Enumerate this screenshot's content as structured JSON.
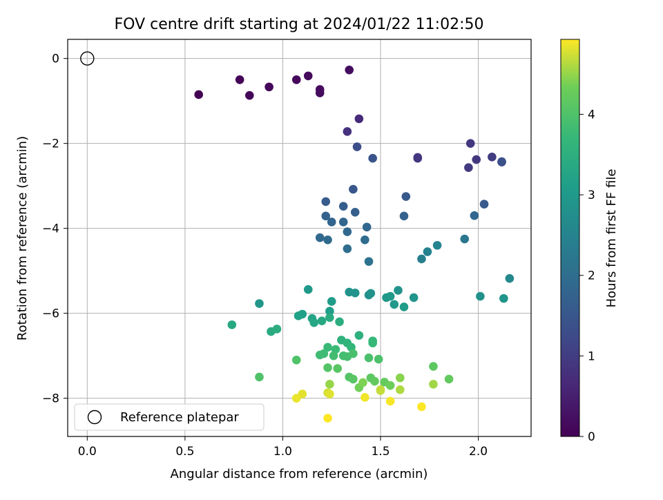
{
  "chart_data": {
    "type": "scatter",
    "title": "FOV centre drift starting at 2024/01/22 11:02:50",
    "xlabel": "Angular distance from reference (arcmin)",
    "ylabel": "Rotation from reference (arcmin)",
    "xlim": [
      -0.1,
      2.27
    ],
    "ylim": [
      -8.9,
      0.45
    ],
    "x_ticks": [
      0.0,
      0.5,
      1.0,
      1.5,
      2.0
    ],
    "x_tick_labels": [
      "0.0",
      "0.5",
      "1.0",
      "1.5",
      "2.0"
    ],
    "y_ticks": [
      0,
      -2,
      -4,
      -6,
      -8
    ],
    "y_tick_labels": [
      "0",
      "−2",
      "−4",
      "−6",
      "−8"
    ],
    "grid": true,
    "colormap": "viridis",
    "colorbar": {
      "label": "Hours from first FF file",
      "range": [
        0,
        4.93
      ],
      "ticks": [
        0,
        1,
        2,
        3,
        4
      ],
      "tick_labels": [
        "0",
        "1",
        "2",
        "3",
        "4"
      ]
    },
    "reference": {
      "name": "Reference platepar",
      "x": 0.0,
      "y": 0.0,
      "marker": "open-circle"
    },
    "legend": {
      "placement": "lower-left",
      "entries": [
        "Reference platepar"
      ]
    },
    "series": [
      {
        "points": [
          [
            0.57,
            -0.85,
            0.0
          ],
          [
            0.78,
            -0.5,
            0.05
          ],
          [
            0.83,
            -0.87,
            0.08
          ],
          [
            0.93,
            -0.67,
            0.1
          ],
          [
            1.07,
            -0.5,
            0.12
          ],
          [
            1.13,
            -0.41,
            0.14
          ],
          [
            1.19,
            -0.73,
            0.16
          ],
          [
            1.19,
            -0.81,
            0.18
          ],
          [
            1.34,
            -0.27,
            0.2
          ],
          [
            1.39,
            -1.42,
            0.7
          ],
          [
            1.33,
            -1.72,
            0.8
          ],
          [
            1.38,
            -2.08,
            1.3
          ],
          [
            1.46,
            -2.35,
            1.45
          ],
          [
            1.69,
            -2.35,
            0.85
          ],
          [
            1.69,
            -2.33,
            0.88
          ],
          [
            1.96,
            -2.0,
            0.9
          ],
          [
            1.99,
            -2.38,
            0.92
          ],
          [
            1.95,
            -2.57,
            0.95
          ],
          [
            2.07,
            -2.32,
            1.0
          ],
          [
            2.12,
            -2.43,
            1.3
          ],
          [
            2.12,
            -2.44,
            1.35
          ],
          [
            1.36,
            -3.08,
            1.5
          ],
          [
            1.63,
            -3.25,
            1.55
          ],
          [
            1.22,
            -3.37,
            1.6
          ],
          [
            1.31,
            -3.48,
            1.65
          ],
          [
            1.37,
            -3.62,
            1.7
          ],
          [
            1.62,
            -3.71,
            1.72
          ],
          [
            1.22,
            -3.71,
            1.75
          ],
          [
            1.25,
            -3.85,
            1.8
          ],
          [
            1.31,
            -3.85,
            1.82
          ],
          [
            1.43,
            -3.97,
            1.85
          ],
          [
            1.33,
            -4.08,
            1.88
          ],
          [
            1.19,
            -4.22,
            1.9
          ],
          [
            1.23,
            -4.27,
            1.95
          ],
          [
            1.42,
            -4.27,
            1.97
          ],
          [
            1.33,
            -4.48,
            2.0
          ],
          [
            1.44,
            -4.78,
            2.1
          ],
          [
            1.98,
            -3.7,
            1.85
          ],
          [
            2.03,
            -3.43,
            1.6
          ],
          [
            1.93,
            -4.25,
            2.2
          ],
          [
            1.71,
            -4.72,
            2.4
          ],
          [
            1.74,
            -4.55,
            2.45
          ],
          [
            1.79,
            -4.4,
            2.5
          ],
          [
            2.16,
            -5.18,
            2.6
          ],
          [
            2.01,
            -5.6,
            2.8
          ],
          [
            2.13,
            -5.65,
            2.9
          ],
          [
            1.59,
            -5.46,
            2.85
          ],
          [
            1.67,
            -5.63,
            2.9
          ],
          [
            1.53,
            -5.63,
            2.95
          ],
          [
            1.55,
            -5.6,
            2.97
          ],
          [
            1.57,
            -5.79,
            3.0
          ],
          [
            1.62,
            -5.85,
            3.05
          ],
          [
            1.44,
            -5.57,
            2.8
          ],
          [
            1.45,
            -5.53,
            2.82
          ],
          [
            1.34,
            -5.5,
            2.85
          ],
          [
            1.37,
            -5.52,
            2.87
          ],
          [
            1.13,
            -5.44,
            3.0
          ],
          [
            0.88,
            -5.77,
            2.95
          ],
          [
            1.25,
            -5.72,
            3.05
          ],
          [
            1.24,
            -5.95,
            3.1
          ],
          [
            1.1,
            -6.02,
            3.15
          ],
          [
            1.08,
            -6.06,
            3.2
          ],
          [
            1.15,
            -6.12,
            3.25
          ],
          [
            1.16,
            -6.22,
            3.3
          ],
          [
            1.2,
            -6.18,
            3.35
          ],
          [
            1.24,
            -6.1,
            3.4
          ],
          [
            1.29,
            -6.2,
            3.45
          ],
          [
            0.74,
            -6.27,
            3.35
          ],
          [
            0.94,
            -6.43,
            3.4
          ],
          [
            0.97,
            -6.37,
            3.45
          ],
          [
            1.39,
            -6.52,
            3.5
          ],
          [
            1.3,
            -6.63,
            3.55
          ],
          [
            1.33,
            -6.7,
            3.6
          ],
          [
            1.35,
            -6.8,
            3.65
          ],
          [
            1.46,
            -6.65,
            3.7
          ],
          [
            1.46,
            -6.7,
            3.72
          ],
          [
            1.23,
            -6.8,
            3.75
          ],
          [
            1.27,
            -6.85,
            3.77
          ],
          [
            1.21,
            -6.95,
            3.8
          ],
          [
            1.19,
            -6.98,
            3.82
          ],
          [
            1.26,
            -7.0,
            3.85
          ],
          [
            1.31,
            -7.0,
            3.87
          ],
          [
            1.33,
            -7.02,
            3.9
          ],
          [
            1.36,
            -6.95,
            3.92
          ],
          [
            1.44,
            -7.05,
            3.95
          ],
          [
            1.49,
            -7.08,
            3.97
          ],
          [
            1.07,
            -7.1,
            4.0
          ],
          [
            1.23,
            -7.28,
            4.05
          ],
          [
            1.28,
            -7.3,
            4.1
          ],
          [
            1.77,
            -7.25,
            4.15
          ],
          [
            0.88,
            -7.5,
            4.0
          ],
          [
            1.34,
            -7.5,
            4.05
          ],
          [
            1.36,
            -7.55,
            4.1
          ],
          [
            1.45,
            -7.52,
            4.15
          ],
          [
            1.47,
            -7.6,
            4.2
          ],
          [
            1.52,
            -7.62,
            4.25
          ],
          [
            1.55,
            -7.7,
            4.3
          ],
          [
            1.39,
            -7.75,
            4.35
          ],
          [
            1.41,
            -7.63,
            4.4
          ],
          [
            1.6,
            -7.52,
            4.45
          ],
          [
            1.24,
            -7.67,
            4.5
          ],
          [
            1.85,
            -7.55,
            4.2
          ],
          [
            1.77,
            -7.67,
            4.55
          ],
          [
            1.6,
            -7.8,
            4.6
          ],
          [
            1.5,
            -7.8,
            4.65
          ],
          [
            1.5,
            -7.82,
            4.7
          ],
          [
            1.23,
            -7.87,
            4.75
          ],
          [
            1.24,
            -7.9,
            4.8
          ],
          [
            1.1,
            -7.9,
            4.82
          ],
          [
            1.07,
            -8.0,
            4.85
          ],
          [
            1.42,
            -7.98,
            4.88
          ],
          [
            1.55,
            -8.07,
            4.9
          ],
          [
            1.71,
            -8.2,
            4.92
          ],
          [
            1.23,
            -8.47,
            4.93
          ]
        ]
      }
    ]
  }
}
